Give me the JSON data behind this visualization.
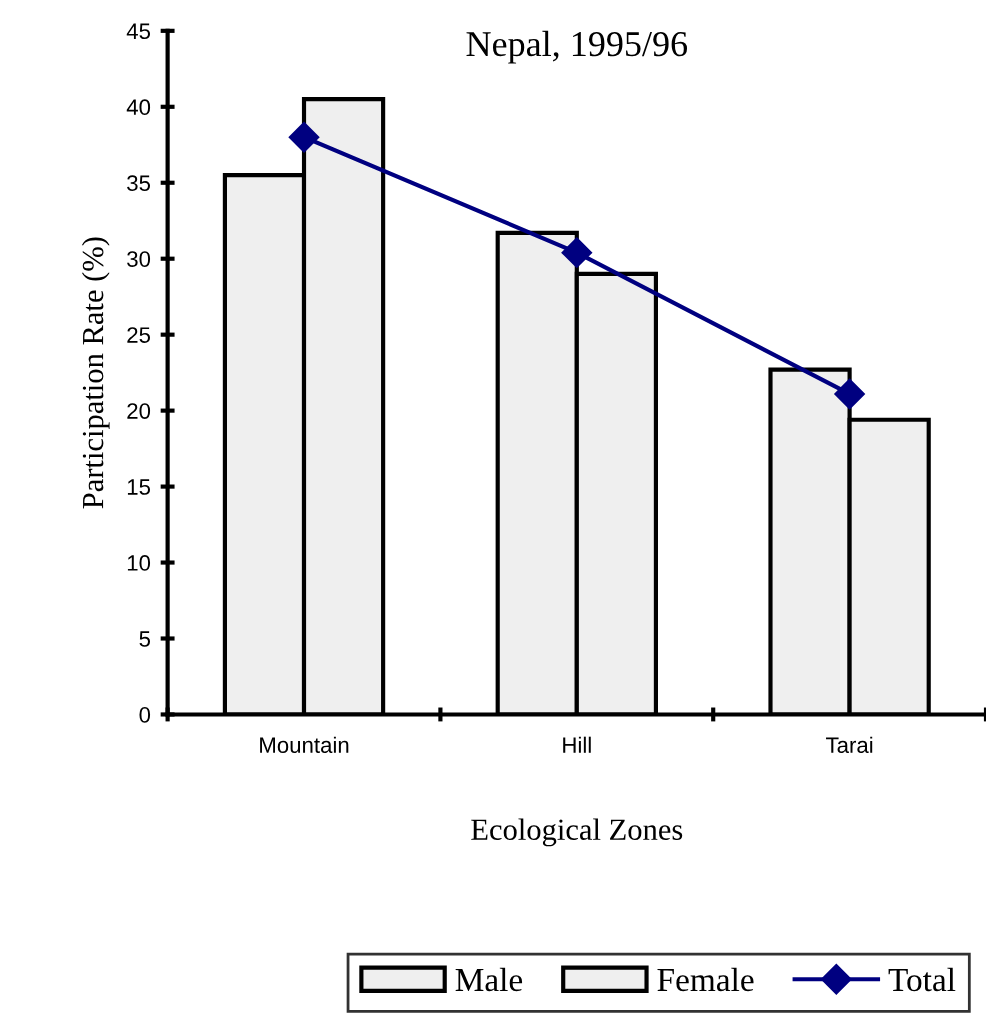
{
  "chart_data": {
    "type": "bar",
    "title": "Nepal, 1995/96",
    "xlabel": "Ecological Zones",
    "ylabel": "Participation Rate (%)",
    "categories": [
      "Mountain",
      "Hill",
      "Tarai"
    ],
    "series": [
      {
        "name": "Male",
        "color": "#efefef",
        "values": [
          35.5,
          31.7,
          22.7
        ]
      },
      {
        "name": "Female",
        "color": "#efefef",
        "values": [
          40.5,
          29.0,
          19.4
        ]
      },
      {
        "name": "Total",
        "type": "line",
        "color": "#000080",
        "values": [
          38.0,
          30.4,
          21.1
        ]
      }
    ],
    "ylim": [
      0,
      45
    ],
    "yticks": [
      0,
      5,
      10,
      15,
      20,
      25,
      30,
      35,
      40,
      45
    ],
    "grid": false,
    "legend": "bottom",
    "marker": "diamond"
  }
}
